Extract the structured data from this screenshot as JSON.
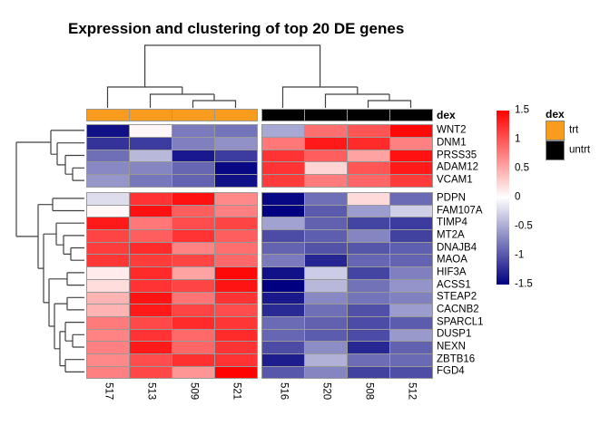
{
  "title": "Expression and clustering of top 20 DE genes",
  "annotation_row_label": "dex",
  "annotation_legend": {
    "title": "dex",
    "entries": [
      {
        "label": "trt",
        "color": "#F89C20"
      },
      {
        "label": "untrt",
        "color": "#000000"
      }
    ]
  },
  "scale_legend": {
    "ticks": [
      "1.5",
      "1",
      "0.5",
      "0",
      "-0.5",
      "-1",
      "-1.5"
    ],
    "tick_values": [
      1.5,
      1,
      0.5,
      0,
      -0.5,
      -1,
      -1.5
    ]
  },
  "chart_data": {
    "type": "heatmap",
    "title": "Expression and clustering of top 20 DE genes",
    "columns": [
      "517",
      "513",
      "509",
      "521",
      "516",
      "520",
      "508",
      "512"
    ],
    "column_annotation": {
      "dex": [
        "trt",
        "trt",
        "trt",
        "trt",
        "untrt",
        "untrt",
        "untrt",
        "untrt"
      ]
    },
    "rows": [
      "WNT2",
      "DNM1",
      "PRSS35",
      "ADAM12",
      "VCAM1",
      "PDPN",
      "FAM107A",
      "TIMP4",
      "MT2A",
      "DNAJB4",
      "MAOA",
      "HIF3A",
      "ACSS1",
      "STEAP2",
      "CACNB2",
      "SPARCL1",
      "DUSP1",
      "NEXN",
      "ZBTB16",
      "FGD4"
    ],
    "values": [
      [
        -1.4,
        0.05,
        -0.78,
        -0.82,
        -0.51,
        0.85,
        1.0,
        1.45
      ],
      [
        -1.2,
        -1.15,
        -0.75,
        -0.65,
        0.8,
        1.35,
        1.25,
        0.75
      ],
      [
        -0.85,
        -0.42,
        -1.35,
        -1.15,
        1.2,
        0.95,
        0.55,
        1.4
      ],
      [
        -0.7,
        -0.72,
        -0.9,
        -1.45,
        1.2,
        0.25,
        1.0,
        1.35
      ],
      [
        -0.62,
        -0.8,
        -0.92,
        -1.4,
        1.15,
        0.77,
        0.9,
        1.15
      ],
      [
        -0.2,
        1.2,
        1.4,
        0.7,
        -1.45,
        -0.85,
        0.22,
        -0.87
      ],
      [
        0.05,
        1.4,
        0.95,
        0.75,
        -1.5,
        -0.97,
        -0.58,
        -0.28
      ],
      [
        1.35,
        0.8,
        1.05,
        1.1,
        -0.55,
        -0.93,
        -1.1,
        -1.15
      ],
      [
        1.1,
        0.95,
        1.2,
        0.95,
        -1.05,
        -0.95,
        -0.72,
        -1.12
      ],
      [
        1.15,
        1.25,
        0.73,
        0.85,
        -0.92,
        -1.02,
        -1.0,
        -0.94
      ],
      [
        1.18,
        1.15,
        1.1,
        0.88,
        -0.78,
        -1.28,
        -0.9,
        -0.92
      ],
      [
        0.12,
        1.25,
        0.55,
        1.45,
        -1.4,
        -0.3,
        -1.1,
        -0.75
      ],
      [
        0.2,
        1.2,
        1.1,
        1.38,
        -1.5,
        -0.42,
        -0.83,
        -0.63
      ],
      [
        0.44,
        1.38,
        0.82,
        1.2,
        -1.35,
        -0.7,
        -0.82,
        -0.74
      ],
      [
        0.45,
        1.35,
        1.1,
        1.05,
        -1.25,
        -0.85,
        -1.03,
        -0.58
      ],
      [
        0.78,
        1.07,
        1.25,
        1.18,
        -0.87,
        -0.93,
        -1.05,
        -0.96
      ],
      [
        0.73,
        1.2,
        0.88,
        1.25,
        -0.9,
        -0.96,
        -1.05,
        -0.6
      ],
      [
        0.75,
        1.35,
        0.9,
        1.2,
        -1.05,
        -0.67,
        -1.27,
        -0.93
      ],
      [
        0.7,
        1.05,
        1.22,
        1.2,
        -1.33,
        -0.46,
        -0.86,
        -0.88
      ],
      [
        0.75,
        1.08,
        0.62,
        1.48,
        -0.99,
        -0.72,
        -1.12,
        -1.04
      ]
    ],
    "value_range": [
      -1.5,
      1.5
    ],
    "color_scale": {
      "low": "#000080",
      "mid": "#FFFFFF",
      "high": "#FF0000"
    },
    "grid_border_color": "#999999",
    "row_dendrogram": true,
    "column_dendrogram": true,
    "legend_position": "right"
  }
}
